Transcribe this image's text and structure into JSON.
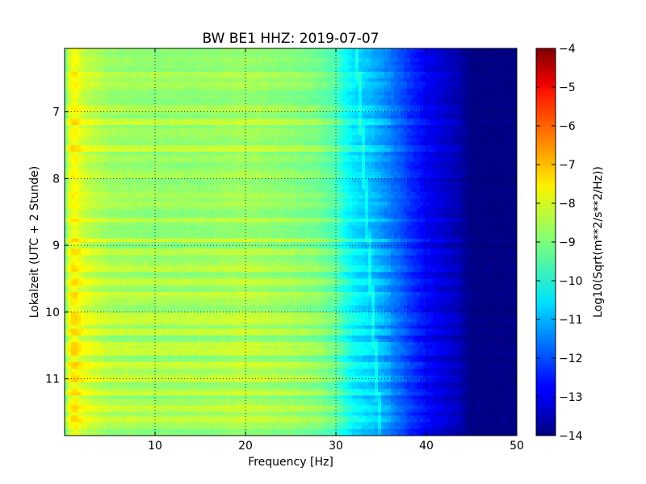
{
  "chart_data": {
    "type": "heatmap",
    "title": "BW BE1 HHZ: 2019-07-07",
    "xlabel": "Frequency [Hz]",
    "ylabel": "Lokalzeit (UTC + 2 Stunde)",
    "xlim": [
      0,
      50
    ],
    "ylim": [
      11.85,
      6.05
    ],
    "x_ticks": [
      10,
      20,
      30,
      40,
      50
    ],
    "y_ticks": [
      7,
      8,
      9,
      10,
      11
    ],
    "grid": true,
    "colormap": "jet",
    "colorbar": {
      "label": "Log10(Sqrt(m**2/s**2/Hz))",
      "vmin": -14,
      "vmax": -4,
      "ticks": [
        -4,
        -5,
        -6,
        -7,
        -8,
        -9,
        -10,
        -11,
        -12,
        -13,
        -14
      ]
    },
    "spectrum_profile": {
      "frequency_hz": [
        0,
        0.5,
        1,
        2,
        3,
        5,
        10,
        15,
        20,
        25,
        28,
        30,
        31,
        32,
        33,
        34,
        35,
        36,
        37,
        38,
        39,
        40,
        41,
        42,
        43,
        44,
        45,
        50
      ],
      "log_psd": [
        -9.3,
        -8.3,
        -7.8,
        -8.3,
        -8.5,
        -8.8,
        -8.9,
        -8.9,
        -8.8,
        -9.0,
        -9.2,
        -9.6,
        -10.2,
        -10.6,
        -10.8,
        -11.0,
        -11.3,
        -11.6,
        -11.9,
        -12.3,
        -12.6,
        -12.9,
        -13.1,
        -13.3,
        -13.5,
        -13.7,
        -14.0,
        -14.0
      ]
    },
    "strong_bands_local_time": [
      7.15,
      7.55,
      8.63,
      8.93,
      9.1,
      9.35,
      9.55,
      9.75,
      10.05,
      10.15,
      10.3,
      10.5,
      10.6,
      10.8,
      11.0,
      11.2,
      11.45,
      11.6
    ],
    "weak_bands_local_time": [
      6.45,
      6.6,
      6.95,
      7.3,
      7.7,
      7.95,
      8.25,
      8.4,
      9.25,
      9.85,
      10.9,
      11.35,
      11.7
    ]
  }
}
